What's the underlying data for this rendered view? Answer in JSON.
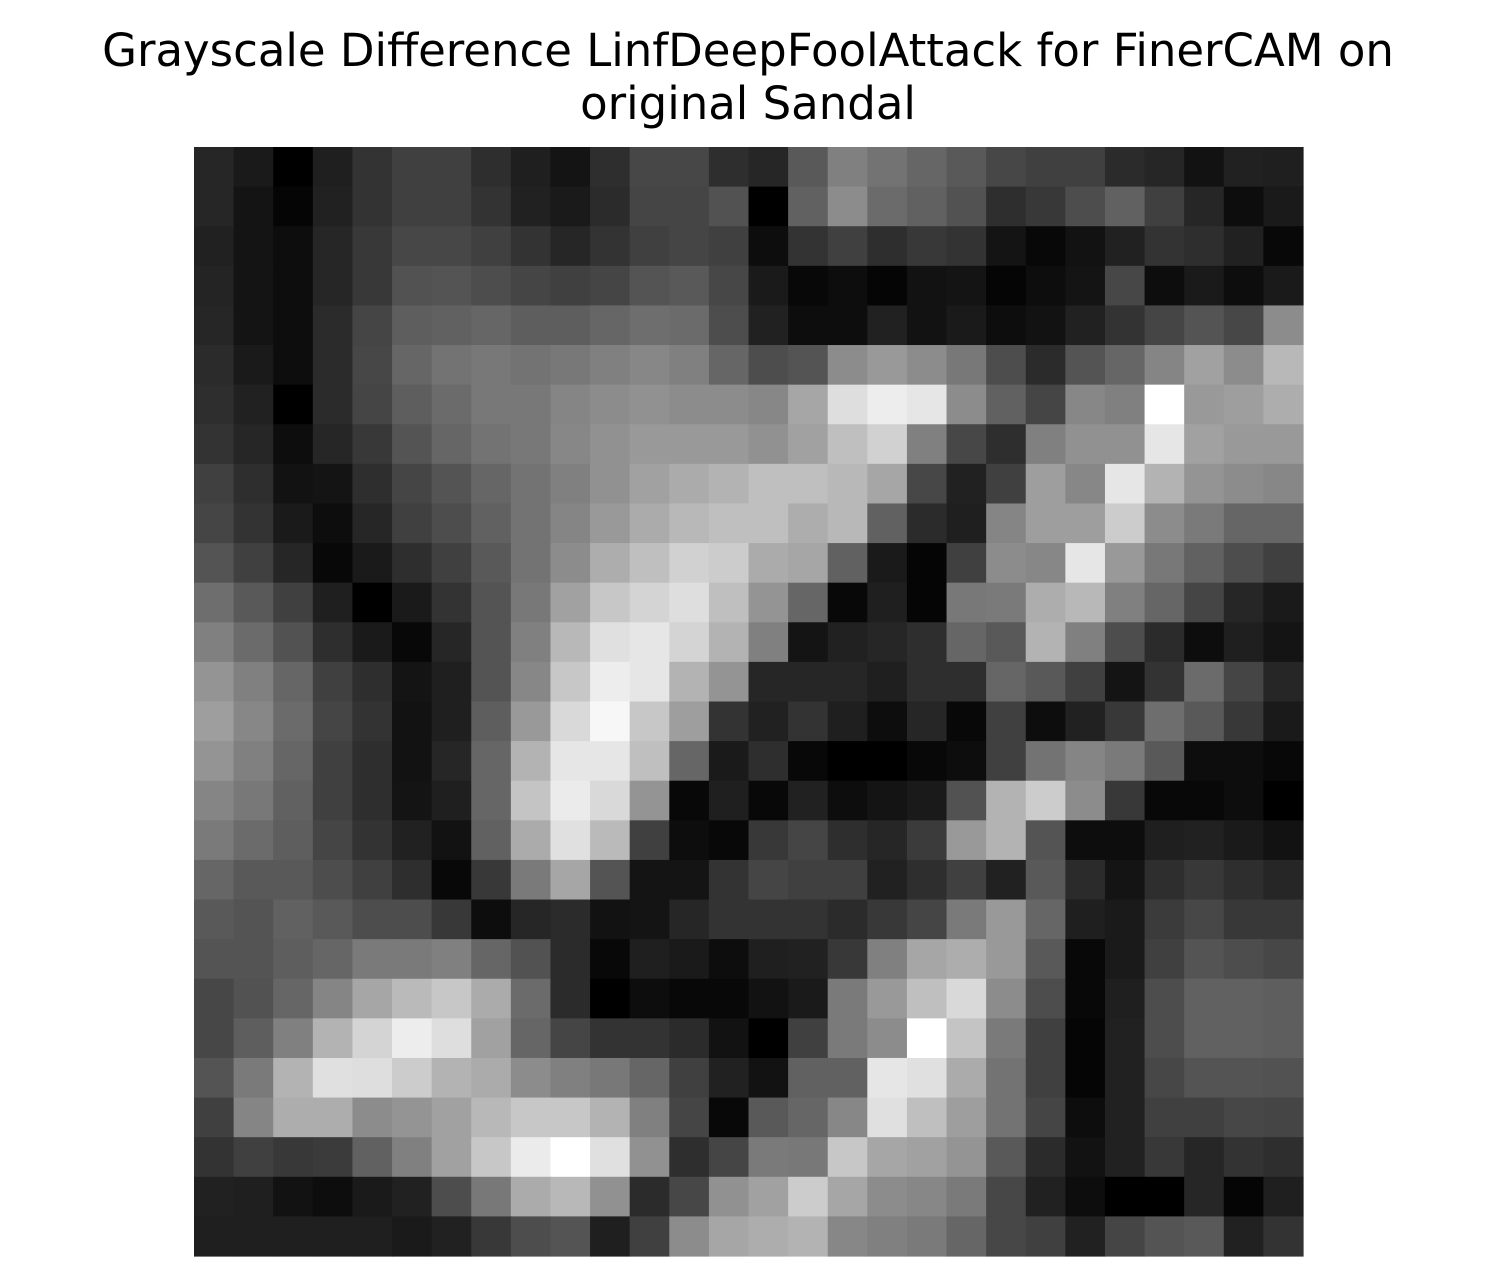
{
  "chart_data": {
    "type": "heatmap",
    "title": "Grayscale Difference LinfDeepFoolAttack for FinerCAM on original Sandal",
    "cmap": "gray",
    "values": [
      [
        15,
        10,
        0,
        12,
        20,
        25,
        25,
        18,
        12,
        8,
        18,
        28,
        28,
        18,
        15,
        35,
        50,
        45,
        40,
        35,
        28,
        25,
        25,
        17,
        15,
        7,
        13,
        12
      ],
      [
        15,
        8,
        2,
        13,
        20,
        25,
        25,
        20,
        13,
        10,
        17,
        27,
        27,
        32,
        0,
        38,
        55,
        42,
        38,
        32,
        18,
        22,
        30,
        38,
        25,
        15,
        5,
        10
      ],
      [
        13,
        8,
        5,
        15,
        22,
        28,
        28,
        25,
        20,
        15,
        20,
        25,
        27,
        25,
        5,
        20,
        25,
        18,
        22,
        20,
        8,
        3,
        7,
        13,
        20,
        18,
        13,
        3
      ],
      [
        14,
        8,
        5,
        15,
        22,
        32,
        33,
        30,
        27,
        25,
        27,
        33,
        35,
        28,
        10,
        3,
        5,
        2,
        7,
        8,
        2,
        5,
        8,
        28,
        5,
        10,
        5,
        10
      ],
      [
        15,
        8,
        5,
        17,
        27,
        37,
        38,
        40,
        37,
        37,
        40,
        43,
        42,
        30,
        13,
        5,
        5,
        13,
        7,
        10,
        5,
        7,
        13,
        20,
        27,
        33,
        28,
        55
      ],
      [
        17,
        10,
        5,
        17,
        28,
        40,
        45,
        47,
        45,
        47,
        50,
        53,
        50,
        40,
        30,
        33,
        55,
        60,
        55,
        47,
        30,
        17,
        33,
        40,
        52,
        63,
        55,
        72
      ],
      [
        18,
        13,
        0,
        17,
        27,
        37,
        42,
        47,
        47,
        52,
        55,
        57,
        55,
        55,
        53,
        65,
        87,
        93,
        90,
        55,
        38,
        27,
        53,
        50,
        100,
        60,
        62,
        68
      ],
      [
        20,
        15,
        5,
        15,
        22,
        33,
        40,
        45,
        47,
        53,
        57,
        60,
        60,
        60,
        57,
        63,
        75,
        82,
        50,
        28,
        18,
        50,
        57,
        57,
        90,
        63,
        60,
        60
      ],
      [
        25,
        18,
        7,
        8,
        18,
        27,
        33,
        40,
        45,
        50,
        57,
        63,
        67,
        70,
        75,
        75,
        72,
        65,
        28,
        13,
        25,
        62,
        53,
        90,
        70,
        58,
        55,
        53
      ],
      [
        27,
        20,
        10,
        5,
        15,
        25,
        30,
        38,
        45,
        52,
        60,
        67,
        72,
        75,
        75,
        68,
        72,
        38,
        17,
        12,
        52,
        62,
        62,
        80,
        55,
        48,
        40,
        40
      ],
      [
        33,
        25,
        15,
        3,
        10,
        18,
        25,
        35,
        45,
        55,
        68,
        75,
        82,
        80,
        67,
        65,
        38,
        10,
        2,
        25,
        55,
        53,
        90,
        60,
        47,
        38,
        30,
        25
      ],
      [
        43,
        35,
        25,
        12,
        0,
        10,
        20,
        33,
        47,
        63,
        78,
        83,
        87,
        75,
        58,
        40,
        3,
        12,
        2,
        47,
        48,
        68,
        72,
        50,
        40,
        27,
        15,
        10
      ],
      [
        50,
        42,
        32,
        18,
        10,
        3,
        15,
        33,
        50,
        72,
        88,
        90,
        83,
        70,
        50,
        8,
        13,
        15,
        18,
        40,
        35,
        70,
        50,
        30,
        17,
        5,
        12,
        8
      ],
      [
        58,
        50,
        40,
        25,
        18,
        8,
        12,
        33,
        53,
        78,
        93,
        90,
        70,
        58,
        15,
        15,
        15,
        12,
        18,
        18,
        40,
        35,
        25,
        8,
        20,
        42,
        27,
        15
      ],
      [
        62,
        53,
        42,
        27,
        20,
        7,
        12,
        37,
        60,
        85,
        97,
        78,
        62,
        20,
        13,
        20,
        12,
        5,
        15,
        3,
        25,
        5,
        13,
        22,
        43,
        35,
        22,
        10
      ],
      [
        58,
        50,
        40,
        25,
        18,
        7,
        15,
        40,
        70,
        90,
        90,
        75,
        40,
        10,
        18,
        3,
        0,
        0,
        3,
        5,
        25,
        45,
        52,
        48,
        35,
        5,
        5,
        3
      ],
      [
        52,
        47,
        38,
        25,
        18,
        8,
        12,
        40,
        77,
        92,
        85,
        58,
        3,
        12,
        3,
        13,
        5,
        8,
        10,
        32,
        70,
        80,
        55,
        22,
        3,
        3,
        5,
        0
      ],
      [
        48,
        42,
        37,
        27,
        20,
        13,
        7,
        38,
        67,
        88,
        73,
        25,
        5,
        3,
        22,
        27,
        18,
        15,
        23,
        60,
        70,
        33,
        5,
        5,
        12,
        13,
        10,
        7
      ],
      [
        40,
        35,
        35,
        30,
        25,
        18,
        3,
        22,
        48,
        65,
        33,
        8,
        8,
        20,
        27,
        25,
        25,
        13,
        18,
        25,
        13,
        35,
        17,
        8,
        18,
        22,
        18,
        15
      ],
      [
        35,
        33,
        38,
        35,
        30,
        30,
        22,
        5,
        15,
        17,
        7,
        8,
        15,
        20,
        20,
        20,
        17,
        22,
        27,
        48,
        60,
        40,
        12,
        10,
        23,
        28,
        22,
        22
      ],
      [
        33,
        33,
        37,
        40,
        48,
        48,
        50,
        40,
        32,
        17,
        3,
        12,
        10,
        5,
        12,
        13,
        22,
        50,
        65,
        68,
        60,
        35,
        3,
        10,
        25,
        33,
        30,
        28
      ],
      [
        28,
        32,
        40,
        52,
        65,
        73,
        78,
        67,
        42,
        17,
        0,
        5,
        3,
        3,
        7,
        10,
        48,
        60,
        75,
        85,
        55,
        30,
        3,
        12,
        30,
        38,
        38,
        37
      ],
      [
        28,
        37,
        50,
        70,
        83,
        93,
        87,
        63,
        40,
        27,
        20,
        20,
        17,
        7,
        0,
        25,
        48,
        55,
        100,
        77,
        48,
        25,
        2,
        13,
        30,
        38,
        38,
        37
      ],
      [
        33,
        48,
        70,
        88,
        87,
        80,
        70,
        67,
        55,
        50,
        47,
        40,
        25,
        13,
        7,
        38,
        38,
        90,
        88,
        67,
        45,
        25,
        2,
        13,
        28,
        33,
        33,
        32
      ],
      [
        25,
        52,
        68,
        68,
        55,
        58,
        63,
        72,
        78,
        78,
        70,
        50,
        27,
        3,
        35,
        40,
        53,
        88,
        75,
        62,
        45,
        27,
        5,
        13,
        25,
        25,
        28,
        27
      ],
      [
        20,
        25,
        22,
        23,
        38,
        50,
        63,
        78,
        92,
        100,
        88,
        57,
        18,
        27,
        48,
        47,
        78,
        65,
        63,
        58,
        35,
        17,
        7,
        13,
        22,
        15,
        20,
        18
      ],
      [
        13,
        12,
        7,
        5,
        10,
        13,
        30,
        47,
        67,
        72,
        57,
        17,
        28,
        57,
        63,
        80,
        65,
        55,
        53,
        48,
        28,
        13,
        5,
        0,
        0,
        15,
        2,
        12
      ],
      [
        12,
        12,
        12,
        12,
        12,
        10,
        13,
        22,
        30,
        33,
        12,
        25,
        55,
        65,
        68,
        70,
        53,
        50,
        48,
        40,
        28,
        25,
        13,
        27,
        33,
        35,
        13,
        20
      ]
    ]
  }
}
